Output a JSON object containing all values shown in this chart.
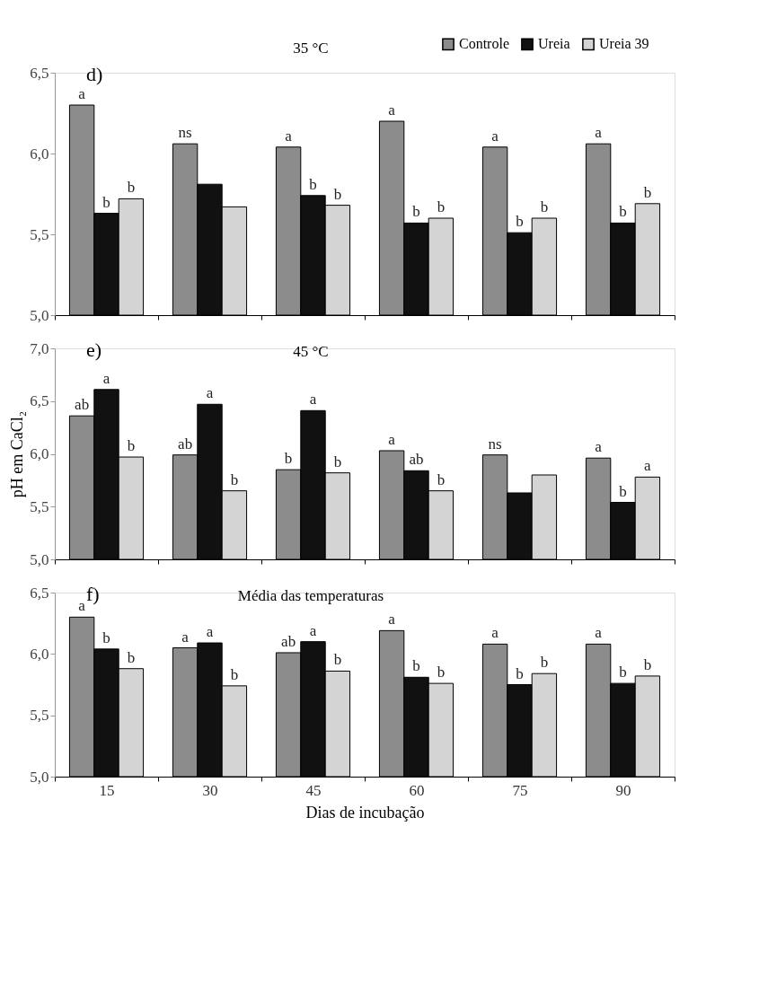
{
  "chart_data": [
    {
      "type": "bar",
      "title": "35 °C",
      "annotations": [
        "d)"
      ],
      "legend": "top right",
      "tick_labels": "y",
      "categories": [
        "15",
        "30",
        "45",
        "60",
        "75",
        "90"
      ],
      "ylim": [
        5.0,
        6.5
      ],
      "yticks": [
        {
          "value": 5.0,
          "label": "5,0"
        },
        {
          "value": 5.5,
          "label": "5,5"
        },
        {
          "value": 6.0,
          "label": "6,0"
        },
        {
          "value": 6.5,
          "label": "6,5"
        }
      ],
      "series": [
        {
          "name": "Controle",
          "color": "#8c8c8c",
          "values": [
            6.3,
            6.06,
            6.04,
            6.2,
            6.04,
            6.06
          ],
          "value_labels": [
            "a",
            "ns",
            "a",
            "a",
            "a",
            "a"
          ]
        },
        {
          "name": "Ureia",
          "color": "#111111",
          "values": [
            5.63,
            5.81,
            5.74,
            5.57,
            5.51,
            5.57
          ],
          "value_labels": [
            "b",
            null,
            "b",
            "b",
            "b",
            "b"
          ]
        },
        {
          "name": "Ureia 39",
          "color": "#d4d4d4",
          "values": [
            5.72,
            5.67,
            5.68,
            5.6,
            5.6,
            5.69
          ],
          "value_labels": [
            "b",
            null,
            "b",
            "b",
            "b",
            "b"
          ]
        }
      ]
    },
    {
      "type": "bar",
      "title": "45 °C",
      "annotations": [
        "e)"
      ],
      "ylabel": "pH em CaCl₂",
      "tick_labels": "y",
      "categories": [
        "15",
        "30",
        "45",
        "60",
        "75",
        "90"
      ],
      "ylim": [
        5.0,
        7.0
      ],
      "yticks": [
        {
          "value": 5.0,
          "label": "5,0"
        },
        {
          "value": 5.5,
          "label": "5,5"
        },
        {
          "value": 6.0,
          "label": "6,0"
        },
        {
          "value": 6.5,
          "label": "6,5"
        },
        {
          "value": 7.0,
          "label": "7,0"
        }
      ],
      "series": [
        {
          "color": "#8c8c8c",
          "values": [
            6.36,
            5.99,
            5.85,
            6.03,
            5.99,
            5.96
          ],
          "value_labels": [
            "ab",
            "ab",
            "b",
            "a",
            "ns",
            "a"
          ]
        },
        {
          "color": "#111111",
          "values": [
            6.61,
            6.47,
            6.41,
            5.84,
            5.63,
            5.54
          ],
          "value_labels": [
            "a",
            "a",
            "a",
            "ab",
            null,
            "b"
          ]
        },
        {
          "color": "#d4d4d4",
          "values": [
            5.97,
            5.65,
            5.82,
            5.65,
            5.8,
            5.78
          ],
          "value_labels": [
            "b",
            "b",
            "b",
            "b",
            null,
            "a"
          ]
        }
      ]
    },
    {
      "type": "bar",
      "title": "Média das temperaturas",
      "annotations": [
        "f)"
      ],
      "xlabel": "Dias de incubação",
      "categories": [
        "15",
        "30",
        "45",
        "60",
        "75",
        "90"
      ],
      "ylim": [
        5.0,
        6.5
      ],
      "yticks": [
        {
          "value": 5.0,
          "label": "5,0"
        },
        {
          "value": 5.5,
          "label": "5,5"
        },
        {
          "value": 6.0,
          "label": "6,0"
        },
        {
          "value": 6.5,
          "label": "6,5"
        }
      ],
      "series": [
        {
          "color": "#8c8c8c",
          "values": [
            6.3,
            6.05,
            6.01,
            6.19,
            6.08,
            6.08
          ],
          "value_labels": [
            "a",
            "a",
            "ab",
            "a",
            "a",
            "a"
          ]
        },
        {
          "color": "#111111",
          "values": [
            6.04,
            6.09,
            6.1,
            5.81,
            5.75,
            5.76
          ],
          "value_labels": [
            "b",
            "a",
            "a",
            "b",
            "b",
            "b"
          ]
        },
        {
          "color": "#d4d4d4",
          "values": [
            5.88,
            5.74,
            5.86,
            5.76,
            5.84,
            5.82
          ],
          "value_labels": [
            "b",
            "b",
            "b",
            "b",
            "b",
            "b"
          ]
        }
      ]
    }
  ]
}
